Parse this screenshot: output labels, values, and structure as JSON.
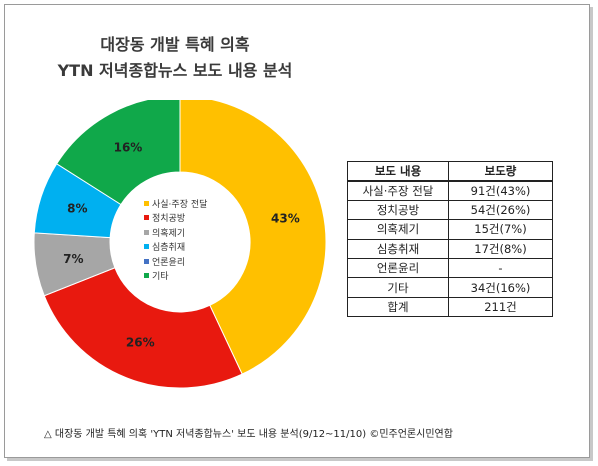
{
  "title_line1": "대장동 개발 특혜 의혹",
  "title_line2": "YTN 저녁종합뉴스 보도 내용 분석",
  "caption": "△ 대장동 개발 특혜 의혹 'YTN 저녁종합뉴스' 보도 내용 분석(9/12~11/10) ©민주언론시민연합",
  "chart_data": {
    "type": "pie",
    "title": "대장동 개발 특혜 의혹 YTN 저녁종합뉴스 보도 내용 분석",
    "categories": [
      "사실·주장 전달",
      "정치공방",
      "의혹제기",
      "심층취재",
      "언론윤리",
      "기타"
    ],
    "values": [
      43,
      26,
      7,
      8,
      0,
      16
    ],
    "labels": [
      "43%",
      "26%",
      "7%",
      "8%",
      "",
      "16%"
    ],
    "colors": [
      "#FFC000",
      "#E8190F",
      "#A6A6A6",
      "#00B0F0",
      "#4472C4",
      "#10A84A"
    ],
    "donut": true,
    "legend_position": "center"
  },
  "table": {
    "headers": [
      "보도 내용",
      "보도량"
    ],
    "rows": [
      [
        "사실·주장 전달",
        "91건(43%)"
      ],
      [
        "정치공방",
        "54건(26%)"
      ],
      [
        "의혹제기",
        "15건(7%)"
      ],
      [
        "심층취재",
        "17건(8%)"
      ],
      [
        "언론윤리",
        "-"
      ],
      [
        "기타",
        "34건(16%)"
      ],
      [
        "합계",
        "211건"
      ]
    ]
  }
}
